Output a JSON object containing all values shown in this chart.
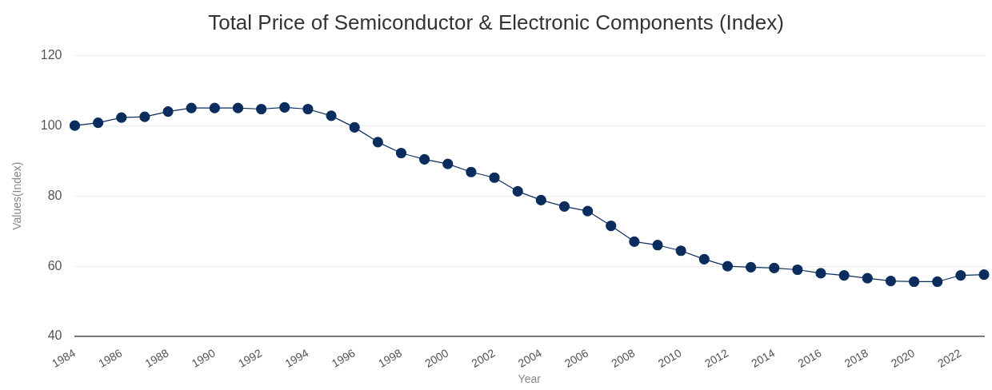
{
  "chart_data": {
    "type": "line",
    "title": "Total Price of Semiconductor & Electronic Components (Index)",
    "xlabel": "Year",
    "ylabel": "Values(Index)",
    "x": [
      1984,
      1985,
      1986,
      1987,
      1988,
      1989,
      1990,
      1991,
      1992,
      1993,
      1994,
      1995,
      1996,
      1997,
      1998,
      1999,
      2000,
      2001,
      2002,
      2003,
      2004,
      2005,
      2006,
      2007,
      2008,
      2009,
      2010,
      2011,
      2012,
      2013,
      2014,
      2015,
      2016,
      2017,
      2018,
      2019,
      2020,
      2021,
      2022,
      2023
    ],
    "series": [
      {
        "color": "#0b2d5e",
        "values": [
          100,
          100.8,
          102.3,
          102.5,
          104,
          105,
          105,
          105,
          104.7,
          105.2,
          104.7,
          102.8,
          99.5,
          95.3,
          92.2,
          90.4,
          89.1,
          86.8,
          85.2,
          81.3,
          78.8,
          77,
          75.7,
          71.5,
          67,
          66,
          64.4,
          62,
          60,
          59.7,
          59.5,
          59,
          58,
          57.4,
          56.6,
          55.8,
          55.6,
          55.6,
          57.4,
          57.6
        ]
      }
    ],
    "xlim": [
      1984,
      2023
    ],
    "xticks": [
      1984,
      1986,
      1988,
      1990,
      1992,
      1994,
      1996,
      1998,
      2000,
      2002,
      2004,
      2006,
      2008,
      2010,
      2012,
      2014,
      2016,
      2018,
      2020,
      2022
    ],
    "ylim": [
      40,
      120
    ],
    "yticks": [
      40,
      60,
      80,
      100,
      120
    ],
    "grid": "y",
    "marker": "circle",
    "line_style": "solid"
  }
}
